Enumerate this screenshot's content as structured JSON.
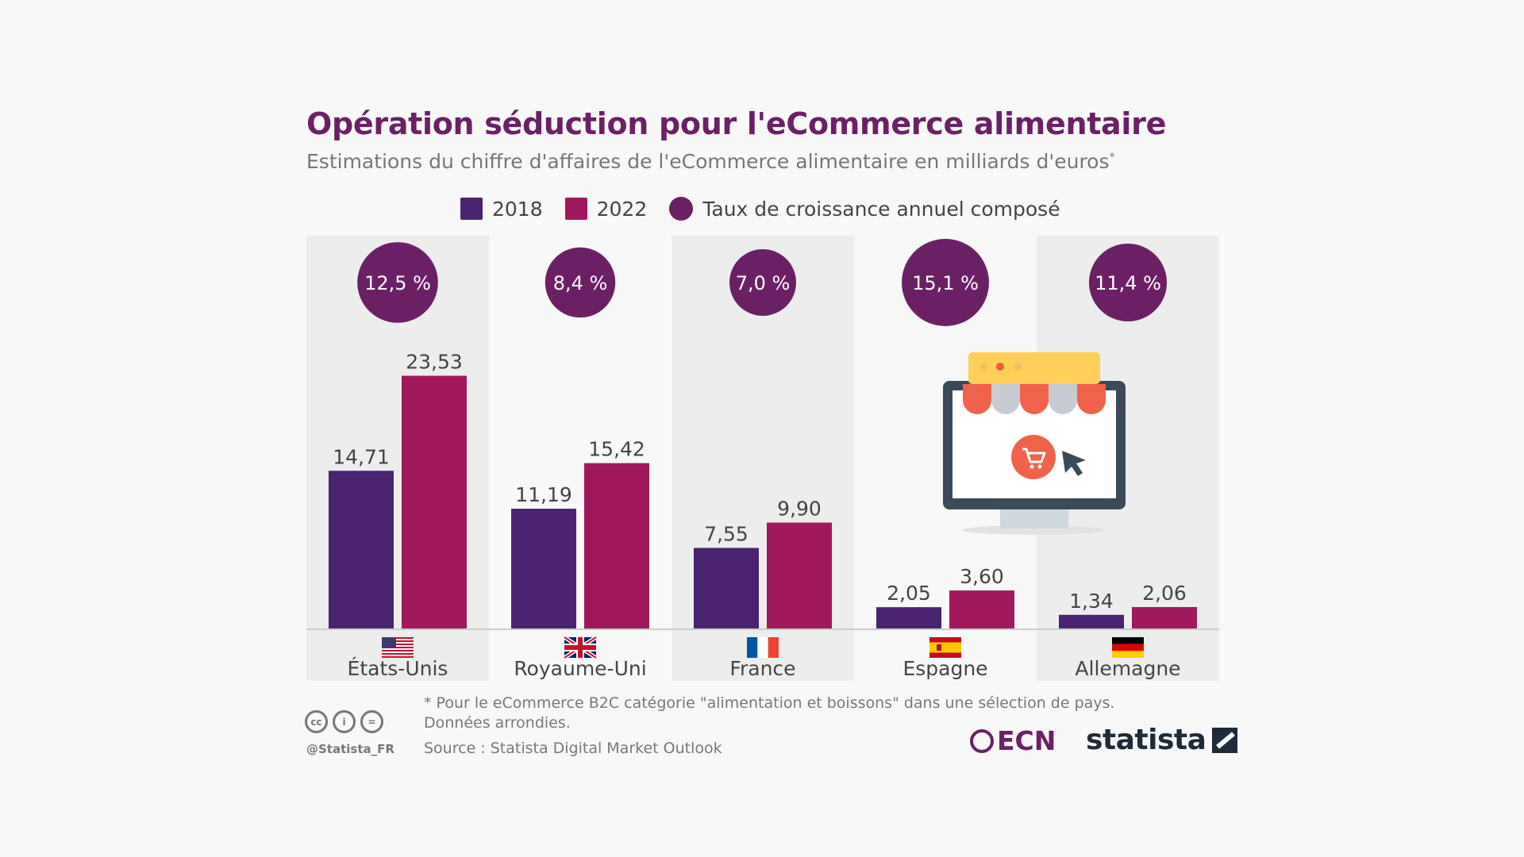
{
  "header": {
    "title": "Opération séduction pour l'eCommerce alimentaire",
    "subtitle": "Estimations du chiffre d'affaires de l'eCommerce alimentaire en milliards d'euros",
    "subtitle_mark": "*"
  },
  "legend": {
    "items": [
      {
        "label": "2018",
        "color": "#4a2470",
        "shape": "square"
      },
      {
        "label": "2022",
        "color": "#a0195c",
        "shape": "square"
      },
      {
        "label": "Taux de croissance annuel composé",
        "color": "#6b2066",
        "shape": "circle"
      }
    ]
  },
  "chart_data": {
    "type": "bar",
    "categories": [
      "États-Unis",
      "Royaume-Uni",
      "France",
      "Espagne",
      "Allemagne"
    ],
    "flags": [
      "us-flag-icon",
      "uk-flag-icon",
      "france-flag-icon",
      "spain-flag-icon",
      "germany-flag-icon"
    ],
    "series": [
      {
        "name": "2018",
        "values": [
          14.71,
          11.19,
          7.55,
          2.05,
          1.34
        ],
        "labels": [
          "14,71",
          "11,19",
          "7,55",
          "2,05",
          "1,34"
        ],
        "color": "#4a2470"
      },
      {
        "name": "2022",
        "values": [
          23.53,
          15.42,
          9.9,
          3.6,
          2.06
        ],
        "labels": [
          "23,53",
          "15,42",
          "9,90",
          "3,60",
          "2,06"
        ],
        "color": "#a0195c"
      }
    ],
    "growth_rates": [
      12.5,
      8.4,
      7.0,
      15.1,
      11.4
    ],
    "growth_labels": [
      "12,5 %",
      "8,4 %",
      "7,0 %",
      "15,1 %",
      "11,4 %"
    ],
    "ylim": [
      0,
      26
    ],
    "grid": false,
    "legend_position": "top-center"
  },
  "footer": {
    "footnote_line1": "* Pour le eCommerce B2C catégorie \"alimentation et boissons\" dans une sélection de pays.",
    "footnote_line2": "Données arrondies.",
    "source": "Source : Statista Digital Market Outlook",
    "handle": "@Statista_FR",
    "cc_icons": [
      "cc",
      "i",
      "="
    ],
    "ecn_logo": "ECN",
    "statista_logo": "statista"
  },
  "illustration": "online-shop-screen-icon"
}
